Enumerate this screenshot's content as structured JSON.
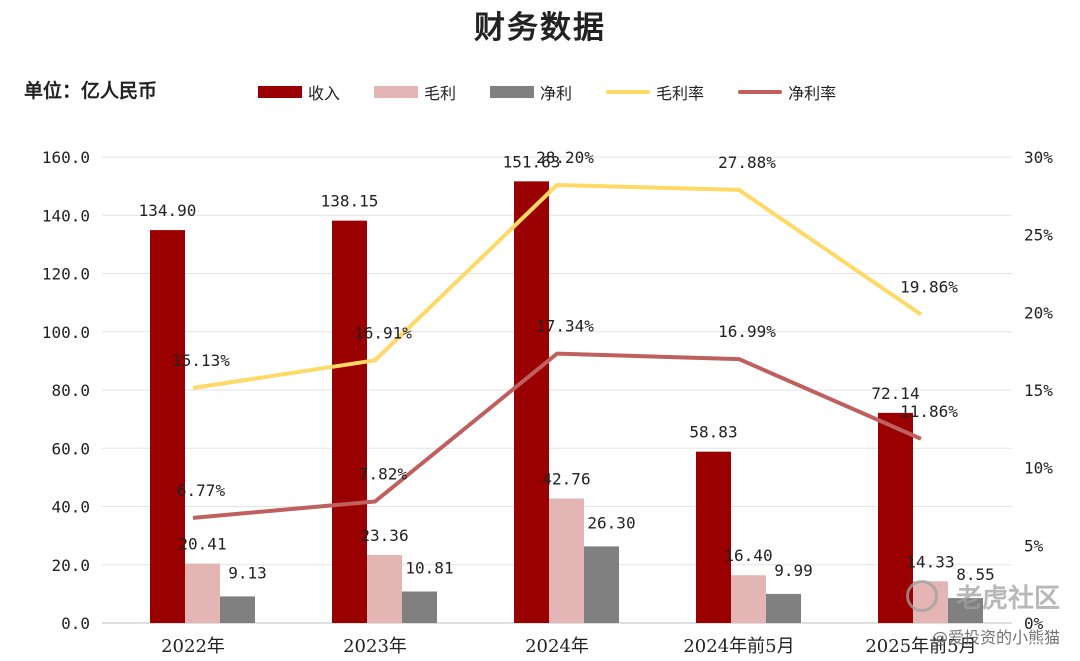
{
  "title": "财务数据",
  "unit_label": "单位：亿人民币",
  "watermark": {
    "brand": "老虎社区",
    "author": "@爱投资的小熊猫"
  },
  "chart_data": {
    "type": "bar",
    "categories": [
      "2022年",
      "2023年",
      "2024年",
      "2024年前5月",
      "2025年前5月"
    ],
    "series": [
      {
        "name": "收入",
        "kind": "bar",
        "axis": "left",
        "color": "#9b0000",
        "values": [
          134.9,
          138.15,
          151.63,
          58.83,
          72.14
        ],
        "labels": [
          "134.90",
          "138.15",
          "151.63",
          "58.83",
          "72.14"
        ]
      },
      {
        "name": "毛利",
        "kind": "bar",
        "axis": "left",
        "color": "#e4b5b5",
        "values": [
          20.41,
          23.36,
          42.76,
          16.4,
          14.33
        ],
        "labels": [
          "20.41",
          "23.36",
          "42.76",
          "16.40",
          "14.33"
        ]
      },
      {
        "name": "净利",
        "kind": "bar",
        "axis": "left",
        "color": "#808080",
        "values": [
          9.13,
          10.81,
          26.3,
          9.99,
          8.55
        ],
        "labels": [
          "9.13",
          "10.81",
          "26.30",
          "9.99",
          "8.55"
        ]
      },
      {
        "name": "毛利率",
        "kind": "line",
        "axis": "right",
        "color": "#ffd966",
        "values": [
          15.13,
          16.91,
          28.2,
          27.88,
          19.86
        ],
        "labels": [
          "15.13%",
          "16.91%",
          "28.20%",
          "27.88%",
          "19.86%"
        ]
      },
      {
        "name": "净利率",
        "kind": "line",
        "axis": "right",
        "color": "#c0605e",
        "values": [
          6.77,
          7.82,
          17.34,
          16.99,
          11.86
        ],
        "labels": [
          "6.77%",
          "7.82%",
          "17.34%",
          "16.99%",
          "11.86%"
        ]
      }
    ],
    "y_left": {
      "min": 0,
      "max": 160,
      "ticks": [
        "0.0",
        "20.0",
        "40.0",
        "60.0",
        "80.0",
        "100.0",
        "120.0",
        "140.0",
        "160.0"
      ]
    },
    "y_right": {
      "min": 0,
      "max": 30,
      "ticks": [
        "0%",
        "5%",
        "10%",
        "15%",
        "20%",
        "25%",
        "30%"
      ]
    },
    "grid": true,
    "legend_position": "top"
  }
}
